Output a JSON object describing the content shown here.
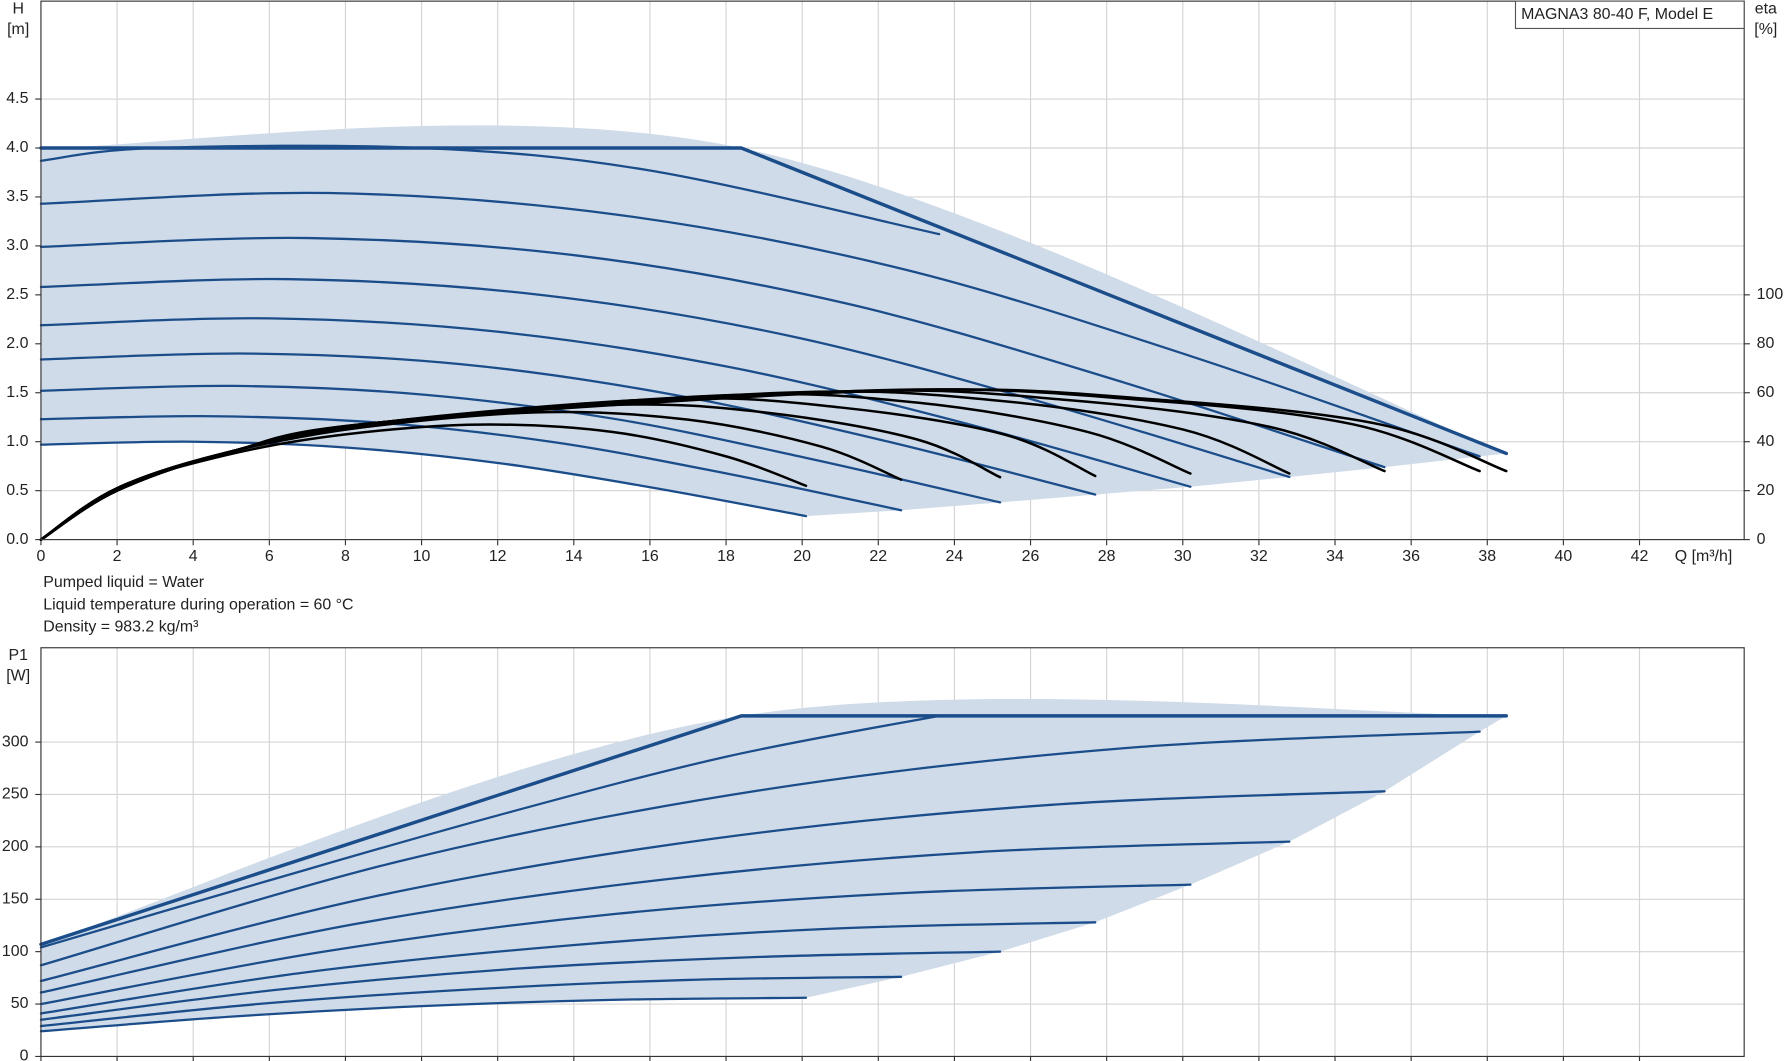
{
  "chart_data": [
    {
      "type": "line",
      "annotation": "MAGNA3 80-40 F, Model E",
      "ylabel": [
        "H",
        "[m]"
      ],
      "y2label": [
        "eta",
        "[%]"
      ],
      "xlabel": "Q [m³/h]",
      "notes": [
        "Pumped liquid = Water",
        "Liquid temperature during operation = 60 °C",
        "Density = 983.2 kg/m³"
      ],
      "xlim": [
        0,
        44.75
      ],
      "xticks": [
        0,
        2,
        4,
        6,
        8,
        10,
        12,
        14,
        16,
        18,
        20,
        22,
        24,
        26,
        28,
        30,
        32,
        34,
        36,
        38,
        40,
        42
      ],
      "ylim": [
        0,
        5.5
      ],
      "yticks": [
        {
          "value": 0,
          "label": "0.0"
        },
        {
          "value": 0.5,
          "label": "0.5"
        },
        {
          "value": 1,
          "label": "1.0"
        },
        {
          "value": 1.5,
          "label": "1.5"
        },
        {
          "value": 2,
          "label": "2.0"
        },
        {
          "value": 2.5,
          "label": "2.5"
        },
        {
          "value": 3,
          "label": "3.0"
        },
        {
          "value": 3.5,
          "label": "3.5"
        },
        {
          "value": 4,
          "label": "4.0"
        },
        {
          "value": 4.5,
          "label": "4.5"
        }
      ],
      "y2lim": [
        0,
        220
      ],
      "y2ticks": [
        0,
        20,
        40,
        60,
        80,
        100
      ],
      "grid": true,
      "shade_color": "#cfdbe8",
      "xtick_labels_shown": true,
      "series": [
        {
          "kind": "max",
          "color": "#1b4d8a",
          "x": [
            0,
            18.4,
            38.5
          ],
          "values": [
            4,
            4,
            0.88
          ]
        },
        {
          "kind": "speed",
          "color": "#1b4d8a",
          "x": [
            0,
            7.56,
            15.12,
            22.68,
            30.24,
            37.8
          ],
          "values": [
            3.43,
            3.54,
            3.32,
            2.76,
            1.87,
            0.85
          ]
        },
        {
          "kind": "speed",
          "color": "#1b4d8a",
          "x": [
            0,
            7.06,
            14.12,
            21.18,
            28.24,
            35.3
          ],
          "values": [
            2.99,
            3.08,
            2.9,
            2.41,
            1.63,
            0.74
          ]
        },
        {
          "kind": "speed",
          "color": "#1b4d8a",
          "x": [
            0,
            6.56,
            13.12,
            19.68,
            26.24,
            32.8
          ],
          "values": [
            2.58,
            2.66,
            2.5,
            2.08,
            1.41,
            0.64
          ]
        },
        {
          "kind": "speed",
          "color": "#1b4d8a",
          "x": [
            0,
            6.04,
            12.08,
            18.12,
            24.16,
            30.2
          ],
          "values": [
            2.19,
            2.26,
            2.12,
            1.76,
            1.2,
            0.54
          ]
        },
        {
          "kind": "speed",
          "color": "#1b4d8a",
          "x": [
            0,
            5.54,
            11.08,
            16.62,
            22.16,
            27.7
          ],
          "values": [
            1.84,
            1.9,
            1.79,
            1.48,
            1.01,
            0.46
          ]
        },
        {
          "kind": "speed",
          "color": "#1b4d8a",
          "x": [
            0,
            5.04,
            10.08,
            15.12,
            20.16,
            25.2
          ],
          "values": [
            1.52,
            1.57,
            1.48,
            1.23,
            0.83,
            0.38
          ]
        },
        {
          "kind": "speed",
          "color": "#1b4d8a",
          "x": [
            0,
            4.52,
            9.04,
            13.56,
            18.08,
            22.6
          ],
          "values": [
            1.23,
            1.26,
            1.19,
            0.99,
            0.67,
            0.3
          ]
        },
        {
          "kind": "speed",
          "color": "#1b4d8a",
          "x": [
            0,
            4.02,
            8.04,
            12.06,
            16.08,
            20.1
          ],
          "values": [
            0.97,
            1.0,
            0.94,
            0.78,
            0.53,
            0.24
          ]
        },
        {
          "kind": "partial",
          "color": "#1b4d8a",
          "x": [
            0,
            3,
            10,
            16,
            23.6
          ],
          "values": [
            3.87,
            4.0,
            4.0,
            3.77,
            3.12
          ]
        },
        {
          "kind": "eta",
          "axis": "y2",
          "color": "#000000",
          "x": [
            0,
            2,
            5,
            9,
            22.5,
            29.5,
            35.2,
            38.5
          ],
          "values": [
            0,
            20,
            36,
            48,
            61,
            57,
            47,
            28
          ]
        },
        {
          "kind": "eta",
          "axis": "y2",
          "color": "#000000",
          "x": [
            0,
            2,
            5,
            9,
            22,
            29,
            34.5,
            37.8
          ],
          "values": [
            0,
            20,
            36,
            48,
            61,
            57,
            47,
            28
          ]
        },
        {
          "kind": "eta",
          "axis": "y2",
          "color": "#000000",
          "x": [
            0,
            2,
            5,
            9,
            21,
            27,
            32.3,
            35.3
          ],
          "values": [
            0,
            20,
            36,
            48,
            60.5,
            57,
            46,
            28
          ]
        },
        {
          "kind": "eta",
          "axis": "y2",
          "color": "#000000",
          "x": [
            0,
            2,
            5,
            9,
            19.5,
            25,
            30,
            32.8
          ],
          "values": [
            0,
            20,
            36,
            48,
            60,
            57,
            45,
            27
          ]
        },
        {
          "kind": "eta",
          "axis": "y2",
          "color": "#000000",
          "x": [
            0,
            2,
            5,
            9,
            18,
            23,
            27.5,
            30.2
          ],
          "values": [
            0,
            21,
            36,
            48,
            59,
            56,
            44,
            27
          ]
        },
        {
          "kind": "eta",
          "axis": "y2",
          "color": "#000000",
          "x": [
            0,
            2,
            5,
            9,
            16.5,
            21,
            25.3,
            27.7
          ],
          "values": [
            0,
            21,
            36,
            48,
            57.5,
            54,
            43,
            26
          ]
        },
        {
          "kind": "eta",
          "axis": "y2",
          "color": "#000000",
          "x": [
            0,
            2,
            5,
            9,
            15,
            19,
            23,
            25.2
          ],
          "values": [
            0,
            21,
            36,
            47,
            55,
            52,
            41,
            25.5
          ]
        },
        {
          "kind": "eta",
          "axis": "y2",
          "color": "#000000",
          "x": [
            0,
            2,
            5,
            8,
            13,
            17,
            20.5,
            22.6
          ],
          "values": [
            0,
            21,
            36,
            45,
            52,
            49,
            38,
            24.5
          ]
        },
        {
          "kind": "eta",
          "axis": "y2",
          "color": "#000000",
          "x": [
            0,
            2,
            5,
            8,
            11.5,
            15,
            18,
            20.1
          ],
          "values": [
            0,
            21,
            35,
            43,
            47,
            44,
            34,
            22
          ]
        }
      ]
    },
    {
      "type": "line",
      "ylabel": [
        "P1",
        "[W]"
      ],
      "xlim": [
        0,
        44.75
      ],
      "xticks": [
        0,
        2,
        4,
        6,
        8,
        10,
        12,
        14,
        16,
        18,
        20,
        22,
        24,
        26,
        28,
        30,
        32,
        34,
        36,
        38,
        40,
        42
      ],
      "ylim": [
        0,
        390
      ],
      "yticks": [
        0,
        50,
        100,
        150,
        200,
        250,
        300
      ],
      "grid": true,
      "shade_color": "#cfdbe8",
      "xtick_labels_shown": false,
      "series": [
        {
          "kind": "max",
          "color": "#1b4d8a",
          "x": [
            0,
            18.4,
            38.5
          ],
          "values": [
            107,
            325,
            325
          ]
        },
        {
          "kind": "speed",
          "color": "#1b4d8a",
          "x": [
            0,
            9.5,
            18.9,
            28.4,
            37.8
          ],
          "values": [
            87,
            187,
            254,
            294,
            310
          ]
        },
        {
          "kind": "speed",
          "color": "#1b4d8a",
          "x": [
            0,
            8.8,
            17.7,
            26.5,
            35.3
          ],
          "values": [
            72,
            153,
            208,
            240,
            253
          ]
        },
        {
          "kind": "speed",
          "color": "#1b4d8a",
          "x": [
            0,
            8.2,
            16.4,
            24.6,
            32.8
          ],
          "values": [
            61,
            126,
            169,
            195,
            205
          ]
        },
        {
          "kind": "speed",
          "color": "#1b4d8a",
          "x": [
            0,
            7.6,
            15.1,
            22.7,
            30.2
          ],
          "values": [
            50,
            101,
            136,
            156,
            164
          ]
        },
        {
          "kind": "speed",
          "color": "#1b4d8a",
          "x": [
            0,
            6.9,
            13.9,
            20.8,
            27.7
          ],
          "values": [
            41,
            80,
            106,
            122,
            128
          ]
        },
        {
          "kind": "speed",
          "color": "#1b4d8a",
          "x": [
            0,
            6.3,
            12.6,
            18.9,
            25.2
          ],
          "values": [
            35,
            64,
            84,
            95,
            100
          ]
        },
        {
          "kind": "speed",
          "color": "#1b4d8a",
          "x": [
            0,
            5.7,
            11.3,
            17,
            22.6
          ],
          "values": [
            29,
            50,
            64,
            73,
            76
          ]
        },
        {
          "kind": "speed",
          "color": "#1b4d8a",
          "x": [
            0,
            5,
            10,
            15,
            20.1
          ],
          "values": [
            24,
            38,
            48,
            54,
            56
          ]
        },
        {
          "kind": "partial",
          "color": "#1b4d8a",
          "x": [
            0,
            6,
            12,
            18,
            23.6
          ],
          "values": [
            104,
            168,
            230,
            286,
            325
          ]
        }
      ]
    }
  ]
}
